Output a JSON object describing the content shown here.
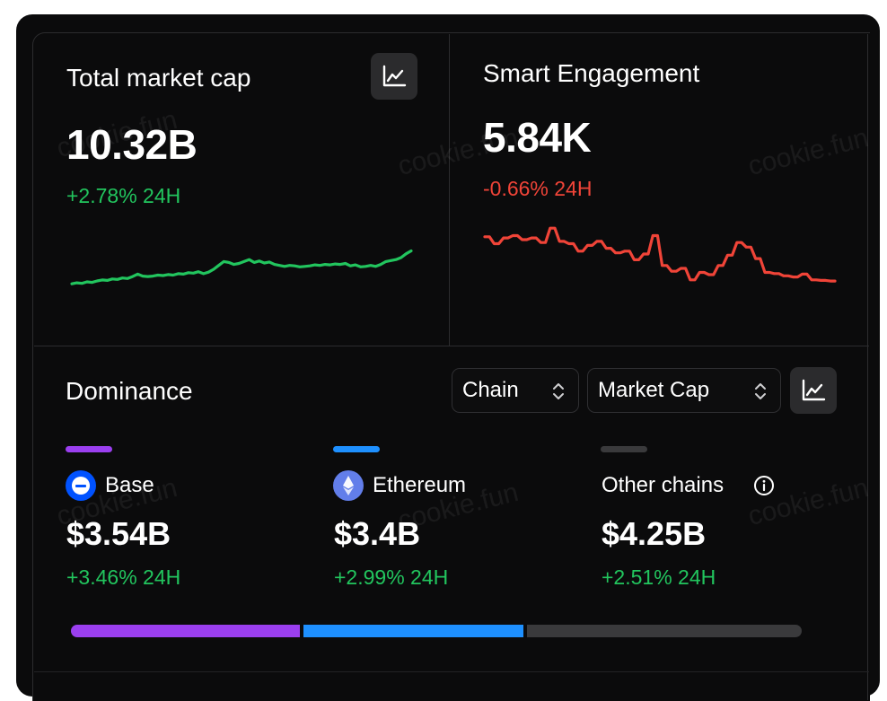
{
  "cards": {
    "market_cap": {
      "title": "Total market cap",
      "value": "10.32B",
      "change": "+2.78% 24H",
      "trend_color": "#22c55e",
      "series": [
        0.2,
        0.22,
        0.21,
        0.24,
        0.23,
        0.26,
        0.28,
        0.27,
        0.3,
        0.29,
        0.32,
        0.31,
        0.35,
        0.4,
        0.36,
        0.35,
        0.36,
        0.38,
        0.37,
        0.39,
        0.38,
        0.41,
        0.4,
        0.43,
        0.42,
        0.45,
        0.41,
        0.44,
        0.5,
        0.58,
        0.66,
        0.64,
        0.6,
        0.62,
        0.66,
        0.7,
        0.64,
        0.67,
        0.63,
        0.65,
        0.6,
        0.58,
        0.56,
        0.58,
        0.57,
        0.55,
        0.56,
        0.57,
        0.59,
        0.58,
        0.6,
        0.59,
        0.61,
        0.6,
        0.62,
        0.57,
        0.59,
        0.55,
        0.56,
        0.58,
        0.56,
        0.6,
        0.66,
        0.68,
        0.7,
        0.74,
        0.82,
        0.88
      ]
    },
    "engagement": {
      "title": "Smart Engagement",
      "value": "5.84K",
      "change": "-0.66% 24H",
      "trend_color": "#f04438",
      "series": [
        0.8,
        0.8,
        0.68,
        0.68,
        0.78,
        0.78,
        0.82,
        0.82,
        0.75,
        0.75,
        0.78,
        0.78,
        0.7,
        0.7,
        0.95,
        0.95,
        0.72,
        0.72,
        0.68,
        0.68,
        0.55,
        0.55,
        0.65,
        0.65,
        0.72,
        0.72,
        0.6,
        0.6,
        0.52,
        0.52,
        0.55,
        0.55,
        0.4,
        0.4,
        0.5,
        0.5,
        0.82,
        0.82,
        0.3,
        0.3,
        0.2,
        0.2,
        0.25,
        0.25,
        0.05,
        0.05,
        0.18,
        0.18,
        0.14,
        0.14,
        0.3,
        0.3,
        0.48,
        0.48,
        0.7,
        0.7,
        0.62,
        0.62,
        0.42,
        0.42,
        0.18,
        0.18,
        0.16,
        0.16,
        0.12,
        0.12,
        0.1,
        0.1,
        0.15,
        0.15,
        0.05,
        0.05,
        0.04,
        0.04,
        0.03,
        0.03
      ]
    }
  },
  "dominance": {
    "title": "Dominance",
    "selects": {
      "group": "Chain",
      "metric": "Market Cap"
    },
    "chains": [
      {
        "name": "Base",
        "value": "$3.54B",
        "change": "+3.46% 24H",
        "color": "#9b3ff0",
        "share": 3.54
      },
      {
        "name": "Ethereum",
        "value": "$3.4B",
        "change": "+2.99% 24H",
        "color": "#1e90ff",
        "share": 3.4
      },
      {
        "name": "Other chains",
        "value": "$4.25B",
        "change": "+2.51% 24H",
        "color": "#3a3a3c",
        "share": 4.25
      }
    ]
  },
  "watermark": "cookie.fun"
}
